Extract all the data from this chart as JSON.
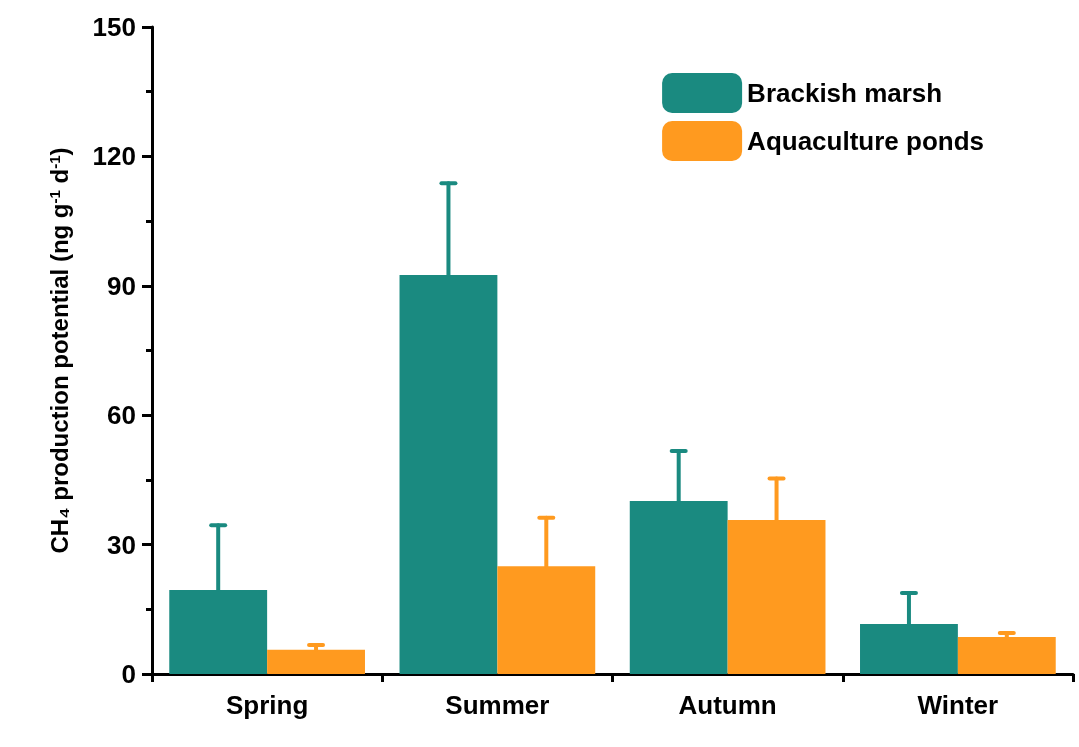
{
  "chart_data": {
    "type": "bar",
    "ylabel": "CH₄ production potential (ng g$^{-1}$ d$^{-1}$)",
    "categories": [
      "Spring",
      "Summer",
      "Autumn",
      "Winter"
    ],
    "series": [
      {
        "name": "Brackish marsh",
        "color": "#1a8a80",
        "values": [
          19.5,
          92.5,
          40.1,
          11.6
        ],
        "errors": [
          [
            19.5,
            34.5
          ],
          [
            92.5,
            113.8
          ],
          [
            40.1,
            51.7
          ],
          [
            11.6,
            18.8
          ]
        ]
      },
      {
        "name": "Aquaculture ponds",
        "color": "#ff9a1f",
        "values": [
          5.6,
          25,
          35.7,
          8.6
        ],
        "errors": [
          [
            5.6,
            6.7
          ],
          [
            25,
            36.2
          ],
          [
            35.7,
            45.3
          ],
          [
            8.6,
            9.5
          ]
        ]
      }
    ],
    "ylim": [
      0,
      150
    ],
    "yticks": [
      0,
      30,
      60,
      90,
      120,
      150
    ],
    "grid": false,
    "legend": "top right"
  }
}
